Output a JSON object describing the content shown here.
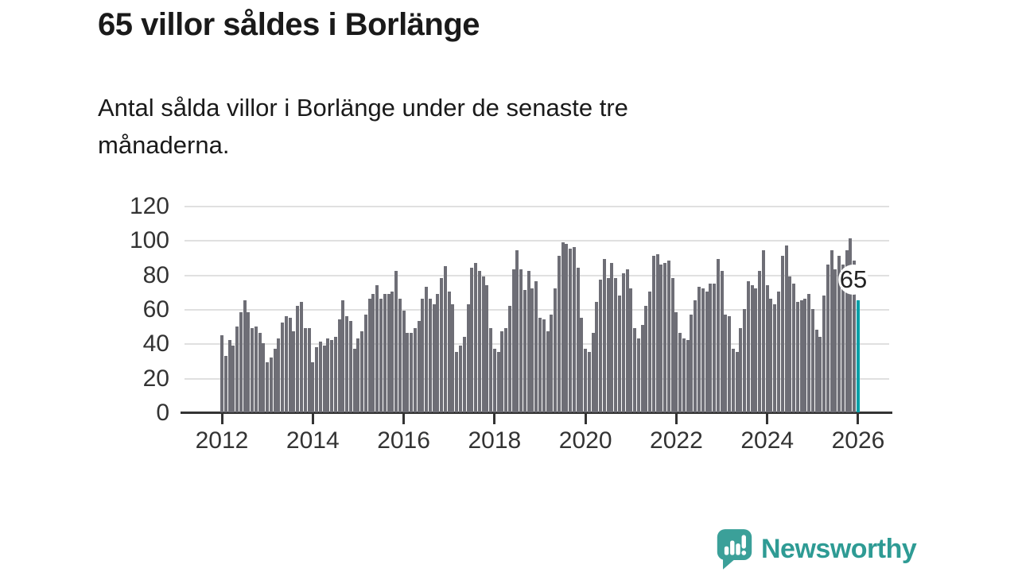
{
  "header": {
    "title": "65 villor såldes i Borlänge",
    "subtitle": "Antal sålda villor i Borlänge under de senaste tre\nmånaderna."
  },
  "chart_data": {
    "type": "bar",
    "title": "65 villor såldes i Borlänge",
    "subtitle": "Antal sålda villor i Borlänge under de senaste tre månaderna.",
    "xlabel": "",
    "ylabel": "",
    "x_monthly_start": "2012-01",
    "x_monthly_end": "2026-01",
    "x_tick_labels": [
      "2012",
      "2014",
      "2016",
      "2018",
      "2020",
      "2022",
      "2024",
      "2026"
    ],
    "y_ticks": [
      0,
      20,
      40,
      60,
      80,
      100,
      120
    ],
    "ylim": [
      0,
      120
    ],
    "grid": true,
    "values": [
      45,
      33,
      42,
      39,
      50,
      58,
      65,
      58,
      49,
      50,
      46,
      40,
      29,
      32,
      37,
      43,
      52,
      56,
      55,
      47,
      62,
      64,
      49,
      49,
      29,
      38,
      41,
      39,
      43,
      42,
      44,
      54,
      65,
      56,
      53,
      37,
      43,
      47,
      57,
      66,
      69,
      74,
      66,
      69,
      69,
      70,
      82,
      66,
      59,
      46,
      46,
      49,
      53,
      66,
      73,
      66,
      63,
      69,
      78,
      85,
      70,
      63,
      35,
      39,
      44,
      63,
      84,
      87,
      82,
      79,
      74,
      49,
      37,
      35,
      47,
      49,
      62,
      83,
      94,
      83,
      71,
      82,
      72,
      76,
      55,
      54,
      47,
      57,
      72,
      91,
      99,
      98,
      95,
      96,
      84,
      55,
      37,
      35,
      46,
      64,
      77,
      89,
      78,
      87,
      78,
      68,
      81,
      83,
      72,
      49,
      43,
      51,
      62,
      70,
      91,
      92,
      86,
      87,
      88,
      78,
      58,
      46,
      43,
      42,
      57,
      65,
      73,
      72,
      70,
      75,
      75,
      89,
      82,
      57,
      56,
      37,
      35,
      49,
      60,
      76,
      74,
      72,
      82,
      94,
      74,
      66,
      63,
      70,
      91,
      97,
      79,
      75,
      64,
      65,
      66,
      69,
      60,
      48,
      44,
      68,
      86,
      94,
      83,
      91,
      86,
      94,
      101,
      88,
      65
    ],
    "highlight": {
      "index": 168,
      "value": 65,
      "label": "65"
    },
    "colors": {
      "bar": "#6e6e76",
      "highlight": "#00a0a8",
      "gridline": "#e0e0e0",
      "axis": "#333333",
      "label_text": "#333333"
    },
    "legend": "none"
  },
  "footer": {
    "brand": "Newsworthy"
  }
}
